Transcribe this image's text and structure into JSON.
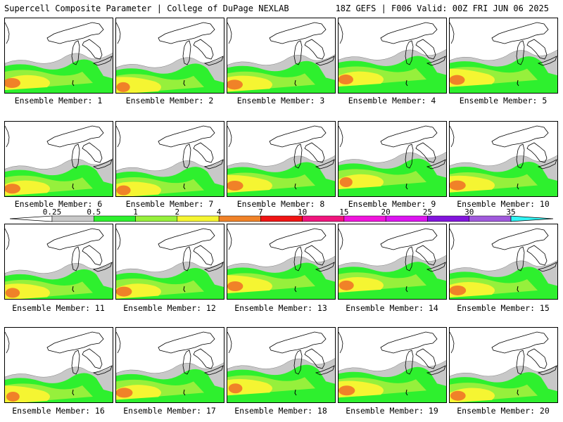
{
  "header": {
    "title": "Supercell Composite Parameter | College of DuPage NEXLAB",
    "run_info": "18Z GEFS | F006 Valid: 00Z FRI JUN 06 2025"
  },
  "colors": {
    "background": "#ffffff",
    "lake_outline": "#000000",
    "contour_outline": "#808080"
  },
  "legend": {
    "thresholds": [
      "0.25",
      "0.5",
      "1",
      "2",
      "4",
      "7",
      "10",
      "15",
      "20",
      "25",
      "30",
      "35"
    ],
    "colors": [
      "#c8c8c8",
      "#2ef02e",
      "#96f03c",
      "#f5f532",
      "#f08228",
      "#f01414",
      "#f0147d",
      "#f014dc",
      "#dc14f0",
      "#8214dc",
      "#a05adc",
      "#32f5f5"
    ]
  },
  "members": [
    {
      "label": "Ensemble Member: 1"
    },
    {
      "label": "Ensemble Member: 2"
    },
    {
      "label": "Ensemble Member: 3"
    },
    {
      "label": "Ensemble Member: 4"
    },
    {
      "label": "Ensemble Member: 5"
    },
    {
      "label": "Ensemble Member: 6"
    },
    {
      "label": "Ensemble Member: 7"
    },
    {
      "label": "Ensemble Member: 8"
    },
    {
      "label": "Ensemble Member: 9"
    },
    {
      "label": "Ensemble Member: 10"
    },
    {
      "label": "Ensemble Member: 11"
    },
    {
      "label": "Ensemble Member: 12"
    },
    {
      "label": "Ensemble Member: 13"
    },
    {
      "label": "Ensemble Member: 14"
    },
    {
      "label": "Ensemble Member: 15"
    },
    {
      "label": "Ensemble Member: 16"
    },
    {
      "label": "Ensemble Member: 17"
    },
    {
      "label": "Ensemble Member: 18"
    },
    {
      "label": "Ensemble Member: 19"
    },
    {
      "label": "Ensemble Member: 20"
    }
  ]
}
